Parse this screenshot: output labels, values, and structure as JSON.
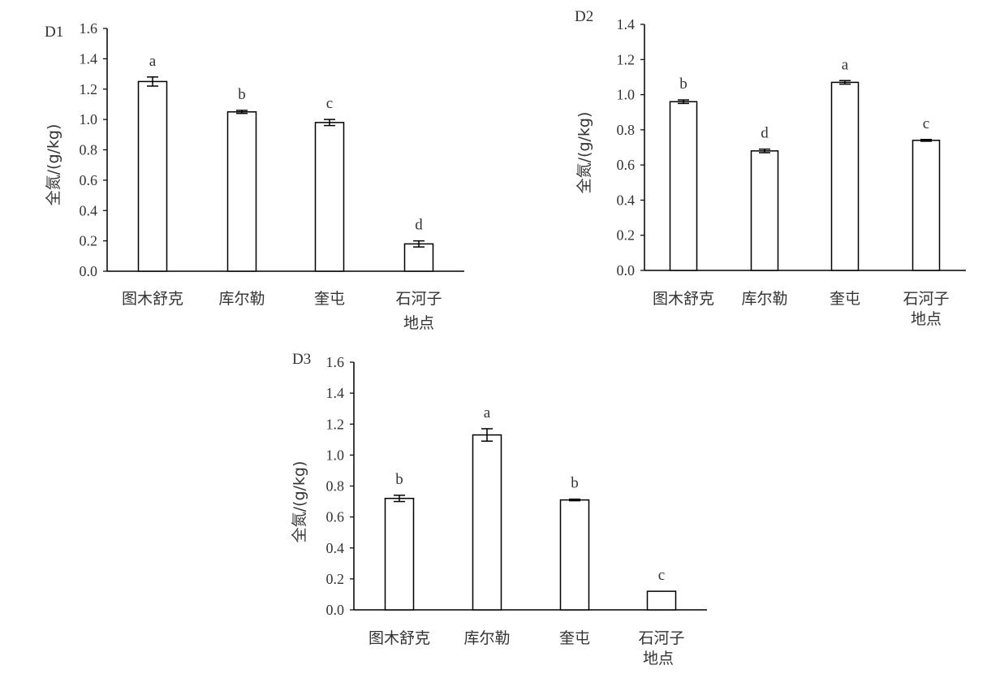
{
  "chart_data": [
    {
      "type": "bar",
      "panel_label": "D1",
      "ylabel": "全氮/(g/kg)",
      "xlabel": "地点",
      "categories": [
        "图木舒克",
        "库尔勒",
        "奎屯",
        "石河子"
      ],
      "values": [
        1.25,
        1.05,
        0.98,
        0.18
      ],
      "errors": [
        0.03,
        0.01,
        0.02,
        0.02
      ],
      "significance": [
        "a",
        "b",
        "c",
        "d"
      ],
      "ylim": [
        0,
        1.6
      ],
      "yticks": [
        "0.0",
        "0.2",
        "0.4",
        "0.6",
        "0.8",
        "1.0",
        "1.2",
        "1.4",
        "1.6"
      ],
      "grid": false
    },
    {
      "type": "bar",
      "panel_label": "D2",
      "ylabel": "全氮/(g/kg)",
      "xlabel": "地点",
      "categories": [
        "图木舒克",
        "库尔勒",
        "奎屯",
        "石河子"
      ],
      "values": [
        0.96,
        0.68,
        1.07,
        0.74
      ],
      "errors": [
        0.01,
        0.01,
        0.01,
        0.005
      ],
      "significance": [
        "b",
        "d",
        "a",
        "c"
      ],
      "ylim": [
        0,
        1.4
      ],
      "yticks": [
        "0.0",
        "0.2",
        "0.4",
        "0.6",
        "0.8",
        "1.0",
        "1.2",
        "1.4"
      ],
      "grid": false
    },
    {
      "type": "bar",
      "panel_label": "D3",
      "ylabel": "全氮/(g/kg)",
      "xlabel": "地点",
      "categories": [
        "图木舒克",
        "库尔勒",
        "奎屯",
        "石河子"
      ],
      "values": [
        0.72,
        1.13,
        0.71,
        0.12
      ],
      "errors": [
        0.02,
        0.04,
        0.005,
        0.0
      ],
      "significance": [
        "b",
        "a",
        "b",
        "c"
      ],
      "ylim": [
        0,
        1.6
      ],
      "yticks": [
        "0.0",
        "0.2",
        "0.4",
        "0.6",
        "0.8",
        "1.0",
        "1.2",
        "1.4",
        "1.6"
      ],
      "grid": false
    }
  ]
}
